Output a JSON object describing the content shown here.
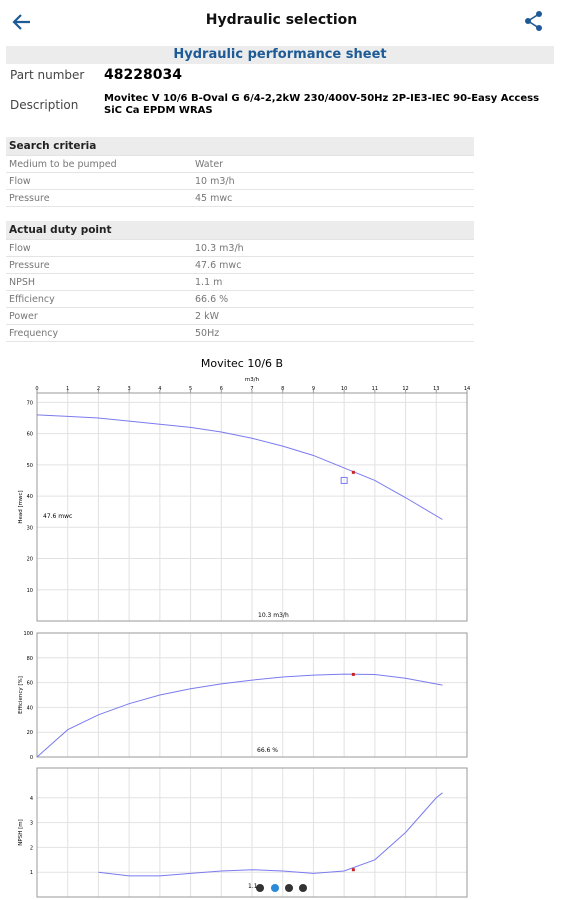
{
  "header": {
    "title": "Hydraulic selection"
  },
  "sheet_title": "Hydraulic performance sheet",
  "part_number": {
    "label": "Part number",
    "value": "48228034"
  },
  "description": {
    "label": "Description",
    "value": "Movitec V 10/6 B-Oval G 6/4-2,2kW 230/400V-50Hz 2P-IE3-IEC 90-Easy Access SiC Ca EPDM WRAS"
  },
  "search_criteria": {
    "title": "Search criteria",
    "rows": [
      [
        "Medium to be pumped",
        "Water"
      ],
      [
        "Flow",
        "10 m3/h"
      ],
      [
        "Pressure",
        "45 mwc"
      ]
    ]
  },
  "duty_point": {
    "title": "Actual duty point",
    "rows": [
      [
        "Flow",
        "10.3 m3/h"
      ],
      [
        "Pressure",
        "47.6 mwc"
      ],
      [
        "NPSH",
        "1.1 m"
      ],
      [
        "Efficiency",
        "66.6 %"
      ],
      [
        "Power",
        "2 kW"
      ],
      [
        "Frequency",
        "50Hz"
      ]
    ]
  },
  "chart_data": [
    {
      "type": "line",
      "title": "Movitec 10/6 B",
      "xlabel": "m3/h",
      "ylabel": "Head [mwc]",
      "xlim": [
        0,
        14
      ],
      "xticks": [
        0,
        1,
        2,
        3,
        4,
        5,
        6,
        7,
        8,
        9,
        10,
        11,
        12,
        13,
        14
      ],
      "ylim": [
        0,
        73
      ],
      "yticks": [
        10,
        20,
        30,
        40,
        50,
        60,
        70
      ],
      "grid": true,
      "series": [
        {
          "color": "#7b7bef",
          "x": [
            0,
            1,
            2,
            3,
            4,
            5,
            6,
            7,
            8,
            9,
            10,
            11,
            12,
            13.2
          ],
          "values": [
            66,
            65.5,
            65,
            64,
            63,
            62,
            60.5,
            58.5,
            56,
            53,
            49,
            45,
            39.5,
            32.5
          ]
        }
      ],
      "duty_point": {
        "x": 10.3,
        "y": 47.6,
        "color": "#cc2222"
      },
      "requested_point": {
        "x": 10,
        "y": 45,
        "color": "#7b7bef"
      },
      "annotations": [
        "47.6 mwc",
        "10.3 m3/h"
      ]
    },
    {
      "type": "line",
      "ylabel": "Efficiency [%]",
      "xlim": [
        0,
        14
      ],
      "ylim": [
        0,
        100
      ],
      "yticks": [
        0,
        20,
        40,
        60,
        80,
        100
      ],
      "grid": true,
      "series": [
        {
          "color": "#7b7bef",
          "x": [
            0,
            1,
            2,
            3,
            4,
            5,
            6,
            7,
            8,
            9,
            10,
            11,
            12,
            13.2
          ],
          "values": [
            0,
            22,
            34,
            43,
            50,
            55,
            59,
            62,
            64.5,
            66,
            66.8,
            66.5,
            63.5,
            58
          ]
        }
      ],
      "duty_point": {
        "x": 10.3,
        "y": 66.6,
        "color": "#cc2222"
      },
      "annotations": [
        "66.6 %"
      ]
    },
    {
      "type": "line",
      "ylabel": "NPSH [m]",
      "xlim": [
        0,
        14
      ],
      "ylim": [
        0,
        5.2
      ],
      "yticks": [
        1,
        2,
        3,
        4
      ],
      "grid": true,
      "series": [
        {
          "color": "#7b7bef",
          "x": [
            2,
            3,
            4,
            5,
            6,
            7,
            8,
            9,
            10,
            11,
            12,
            12.5,
            13,
            13.2
          ],
          "values": [
            1.0,
            0.85,
            0.85,
            0.95,
            1.05,
            1.1,
            1.05,
            0.95,
            1.05,
            1.5,
            2.6,
            3.3,
            4.0,
            4.2
          ]
        }
      ],
      "duty_point": {
        "x": 10.3,
        "y": 1.1,
        "color": "#cc2222"
      },
      "annotations": [
        "1.1"
      ]
    }
  ]
}
